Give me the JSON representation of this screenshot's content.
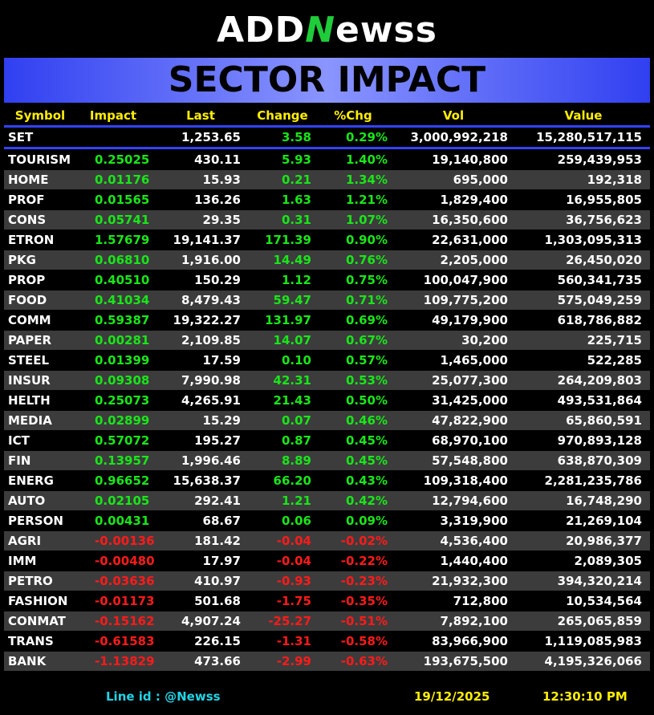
{
  "header": {
    "logo": [
      "ADD",
      "N",
      "ewss"
    ],
    "title": "SECTOR IMPACT"
  },
  "table": {
    "columns": [
      "Symbol",
      "Impact",
      "Last",
      "Change",
      "%Chg",
      "Vol",
      "Value"
    ],
    "index_row": {
      "symbol": "SET",
      "last": "1,253.65",
      "change": "3.58",
      "pct": "0.29%",
      "vol": "3,000,992,218",
      "value": "15,280,517,115"
    },
    "rows": [
      [
        "TOURISM",
        "0.25025",
        "430.11",
        "5.93",
        "1.40%",
        "19,140,800",
        "259,439,953"
      ],
      [
        "HOME",
        "0.01176",
        "15.93",
        "0.21",
        "1.34%",
        "695,000",
        "192,318"
      ],
      [
        "PROF",
        "0.01565",
        "136.26",
        "1.63",
        "1.21%",
        "1,829,400",
        "16,955,805"
      ],
      [
        "CONS",
        "0.05741",
        "29.35",
        "0.31",
        "1.07%",
        "16,350,600",
        "36,756,623"
      ],
      [
        "ETRON",
        "1.57679",
        "19,141.37",
        "171.39",
        "0.90%",
        "22,631,000",
        "1,303,095,313"
      ],
      [
        "PKG",
        "0.06810",
        "1,916.00",
        "14.49",
        "0.76%",
        "2,205,000",
        "26,450,020"
      ],
      [
        "PROP",
        "0.40510",
        "150.29",
        "1.12",
        "0.75%",
        "100,047,900",
        "560,341,735"
      ],
      [
        "FOOD",
        "0.41034",
        "8,479.43",
        "59.47",
        "0.71%",
        "109,775,200",
        "575,049,259"
      ],
      [
        "COMM",
        "0.59387",
        "19,322.27",
        "131.97",
        "0.69%",
        "49,179,900",
        "618,786,882"
      ],
      [
        "PAPER",
        "0.00281",
        "2,109.85",
        "14.07",
        "0.67%",
        "30,200",
        "225,715"
      ],
      [
        "STEEL",
        "0.01399",
        "17.59",
        "0.10",
        "0.57%",
        "1,465,000",
        "522,285"
      ],
      [
        "INSUR",
        "0.09308",
        "7,990.98",
        "42.31",
        "0.53%",
        "25,077,300",
        "264,209,803"
      ],
      [
        "HELTH",
        "0.25073",
        "4,265.91",
        "21.43",
        "0.50%",
        "31,425,000",
        "493,531,864"
      ],
      [
        "MEDIA",
        "0.02899",
        "15.29",
        "0.07",
        "0.46%",
        "47,822,900",
        "65,860,591"
      ],
      [
        "ICT",
        "0.57072",
        "195.27",
        "0.87",
        "0.45%",
        "68,970,100",
        "970,893,128"
      ],
      [
        "FIN",
        "0.13957",
        "1,996.46",
        "8.89",
        "0.45%",
        "57,548,800",
        "638,870,309"
      ],
      [
        "ENERG",
        "0.96652",
        "15,638.37",
        "66.20",
        "0.43%",
        "109,318,400",
        "2,281,235,786"
      ],
      [
        "AUTO",
        "0.02105",
        "292.41",
        "1.21",
        "0.42%",
        "12,794,600",
        "16,748,290"
      ],
      [
        "PERSON",
        "0.00431",
        "68.67",
        "0.06",
        "0.09%",
        "3,319,900",
        "21,269,104"
      ],
      [
        "AGRI",
        "-0.00136",
        "181.42",
        "-0.04",
        "-0.02%",
        "4,536,400",
        "20,986,377"
      ],
      [
        "IMM",
        "-0.00480",
        "17.97",
        "-0.04",
        "-0.22%",
        "1,440,400",
        "2,089,305"
      ],
      [
        "PETRO",
        "-0.03636",
        "410.97",
        "-0.93",
        "-0.23%",
        "21,932,300",
        "394,320,214"
      ],
      [
        "FASHION",
        "-0.01173",
        "501.68",
        "-1.75",
        "-0.35%",
        "712,800",
        "10,534,564"
      ],
      [
        "CONMAT",
        "-0.15162",
        "4,907.24",
        "-25.27",
        "-0.51%",
        "7,892,100",
        "265,065,859"
      ],
      [
        "TRANS",
        "-0.61583",
        "226.15",
        "-1.31",
        "-0.58%",
        "83,966,900",
        "1,119,085,983"
      ],
      [
        "BANK",
        "-1.13829",
        "473.66",
        "-2.99",
        "-0.63%",
        "193,675,500",
        "4,195,326,066"
      ]
    ]
  },
  "footer": {
    "line_label": "Line id  :",
    "line_id": "@Newss",
    "date": "19/12/2025",
    "time": "12:30:10 PM"
  }
}
